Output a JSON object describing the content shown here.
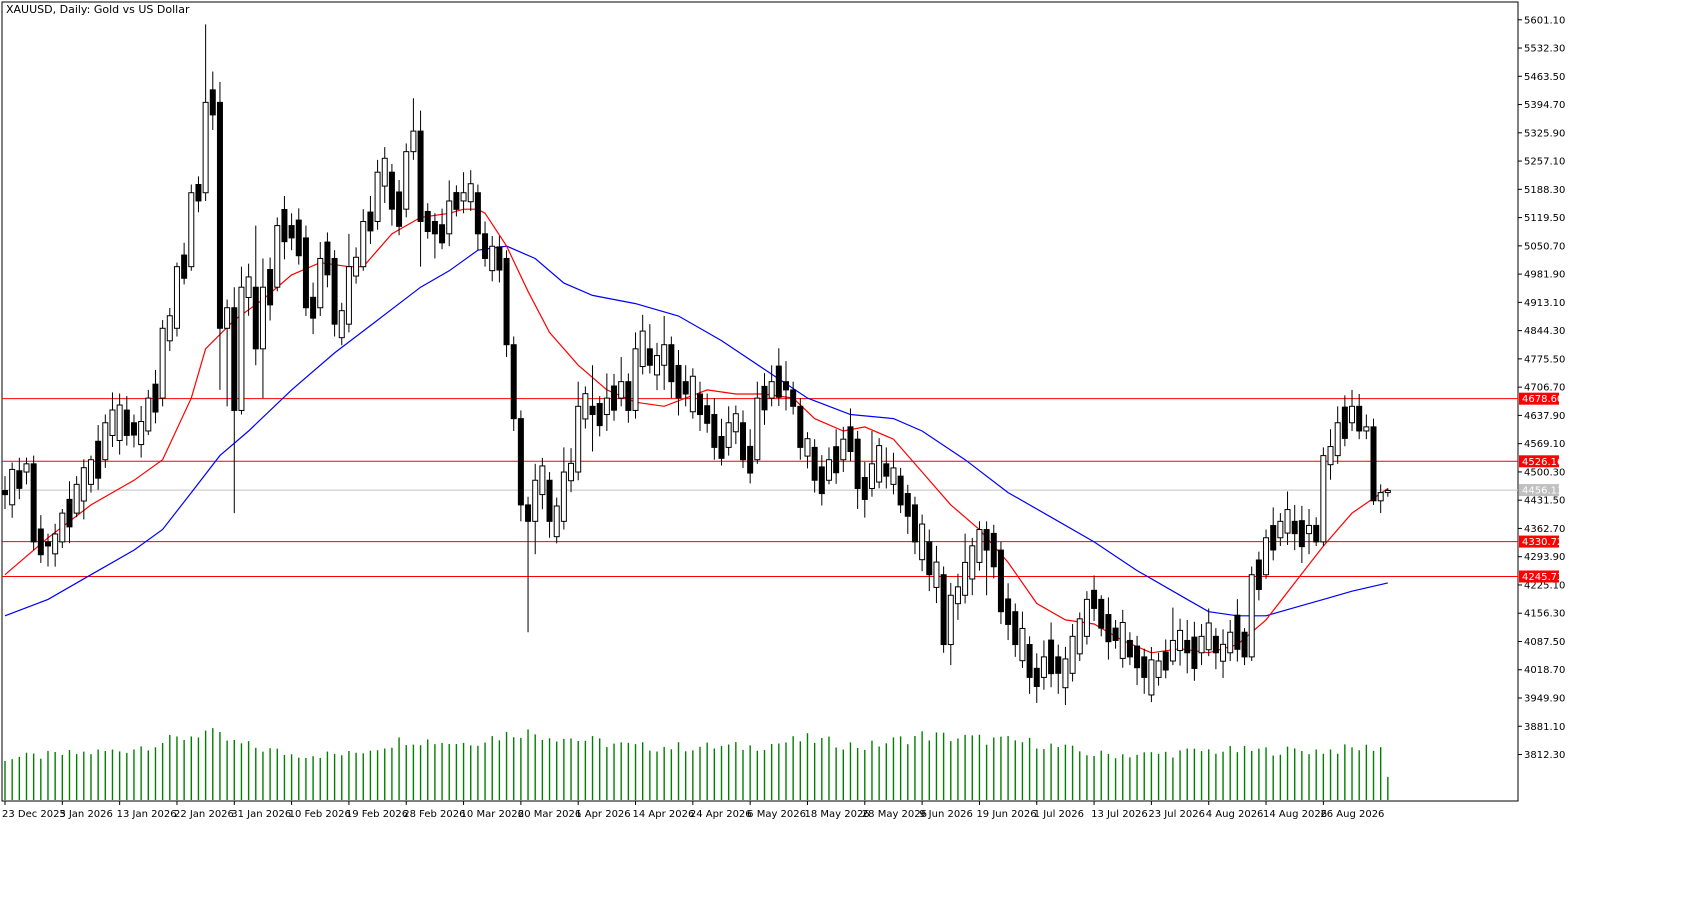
{
  "header": {
    "symbol_title": "XAUUSD, Daily:  Gold vs US Dollar"
  },
  "colors": {
    "background": "#ffffff",
    "frame": "#000000",
    "candle_bull": "#ffffff",
    "candle_bear": "#000000",
    "ma_fast": "#ff0000",
    "ma_slow": "#0000ff",
    "volume": "#008000",
    "hline": "#ff0000",
    "current_price_line": "#c0c0c0",
    "current_price_tag": "#c0c0c0"
  },
  "chart_data": {
    "type": "candlestick",
    "title": "XAUUSD, Daily:  Gold vs US Dollar",
    "xlabel": "",
    "ylabel": "",
    "grid": false,
    "ylim": [
      3760,
      5620
    ],
    "y_ticks": [
      "5601.10",
      "5532.30",
      "5463.50",
      "5394.70",
      "5325.90",
      "5257.10",
      "5188.30",
      "5119.50",
      "5050.70",
      "4981.90",
      "4913.10",
      "4844.30",
      "4775.50",
      "4706.70",
      "4637.90",
      "4569.10",
      "4500.30",
      "4431.50",
      "4362.70",
      "4293.90",
      "4225.10",
      "4156.30",
      "4087.50",
      "4018.70",
      "3949.90",
      "3881.10",
      "3812.30"
    ],
    "x_tick_labels": [
      {
        "index": 0,
        "label": "23 Dec 2025"
      },
      {
        "index": 8,
        "label": "3 Jan 2026"
      },
      {
        "index": 16,
        "label": "13 Jan 2026"
      },
      {
        "index": 24,
        "label": "22 Jan 2026"
      },
      {
        "index": 32,
        "label": "31 Jan 2026"
      },
      {
        "index": 40,
        "label": "10 Feb 2026"
      },
      {
        "index": 48,
        "label": "19 Feb 2026"
      },
      {
        "index": 56,
        "label": "28 Feb 2026"
      },
      {
        "index": 64,
        "label": "10 Mar 2026"
      },
      {
        "index": 72,
        "label": "20 Mar 2026"
      },
      {
        "index": 80,
        "label": "1 Apr 2026"
      },
      {
        "index": 88,
        "label": "14 Apr 2026"
      },
      {
        "index": 96,
        "label": "24 Apr 2026"
      },
      {
        "index": 104,
        "label": "6 May 2026"
      },
      {
        "index": 112,
        "label": "18 May 2026"
      },
      {
        "index": 120,
        "label": "28 May 2026"
      },
      {
        "index": 128,
        "label": "9 Jun 2026"
      },
      {
        "index": 136,
        "label": "19 Jun 2026"
      },
      {
        "index": 144,
        "label": "1 Jul 2026"
      },
      {
        "index": 152,
        "label": "13 Jul 2026"
      },
      {
        "index": 160,
        "label": "23 Jul 2026"
      },
      {
        "index": 168,
        "label": "4 Aug 2026"
      },
      {
        "index": 176,
        "label": "14 Aug 2026"
      },
      {
        "index": 184,
        "label": "26 Aug 2026"
      }
    ],
    "anchors": [
      [
        0,
        4455,
        4445,
        4490,
        4410
      ],
      [
        3,
        4500,
        4520,
        4535,
        4470
      ],
      [
        4,
        4520,
        4330,
        4540,
        4310
      ],
      [
        6,
        4330,
        4320,
        4350,
        4270
      ],
      [
        8,
        4330,
        4400,
        4410,
        4315
      ],
      [
        10,
        4400,
        4470,
        4490,
        4390
      ],
      [
        12,
        4470,
        4530,
        4540,
        4450
      ],
      [
        14,
        4530,
        4620,
        4640,
        4510
      ],
      [
        18,
        4620,
        4590,
        4640,
        4560
      ],
      [
        20,
        4600,
        4680,
        4700,
        4590
      ],
      [
        22,
        4680,
        4850,
        4870,
        4660
      ],
      [
        24,
        4850,
        5000,
        5010,
        4830
      ],
      [
        26,
        5000,
        5180,
        5200,
        4990
      ],
      [
        28,
        5180,
        5400,
        5590,
        5160
      ],
      [
        30,
        5400,
        4850,
        5450,
        4700
      ],
      [
        31,
        4850,
        4900,
        4920,
        4660
      ],
      [
        32,
        4900,
        4650,
        4950,
        4400
      ],
      [
        33,
        4650,
        4950,
        5000,
        4640
      ],
      [
        35,
        4950,
        4800,
        5100,
        4760
      ],
      [
        36,
        4800,
        4950,
        5020,
        4680
      ],
      [
        38,
        4950,
        5100,
        5120,
        4940
      ],
      [
        40,
        5100,
        5070,
        5130,
        5040
      ],
      [
        42,
        5070,
        4900,
        5100,
        4880
      ],
      [
        44,
        4900,
        5020,
        5060,
        4880
      ],
      [
        46,
        5020,
        4860,
        5040,
        4830
      ],
      [
        48,
        4860,
        5000,
        5080,
        4840
      ],
      [
        50,
        5000,
        5110,
        5140,
        4990
      ],
      [
        52,
        5110,
        5230,
        5260,
        5090
      ],
      [
        54,
        5230,
        5140,
        5250,
        5100
      ],
      [
        56,
        5140,
        5280,
        5300,
        5120
      ],
      [
        57,
        5280,
        5330,
        5410,
        5260
      ],
      [
        58,
        5330,
        5110,
        5380,
        5000
      ],
      [
        60,
        5110,
        5080,
        5130,
        5020
      ],
      [
        62,
        5080,
        5160,
        5210,
        5050
      ],
      [
        64,
        5160,
        5180,
        5230,
        5130
      ],
      [
        66,
        5180,
        5080,
        5200,
        5040
      ],
      [
        67,
        5080,
        5020,
        5110,
        5000
      ],
      [
        70,
        5020,
        4810,
        5040,
        4780
      ],
      [
        71,
        4810,
        4630,
        4830,
        4600
      ],
      [
        72,
        4630,
        4420,
        4650,
        4380
      ],
      [
        73,
        4420,
        4380,
        4440,
        4110
      ],
      [
        74,
        4380,
        4480,
        4520,
        4300
      ],
      [
        76,
        4480,
        4380,
        4500,
        4340
      ],
      [
        78,
        4380,
        4500,
        4560,
        4360
      ],
      [
        80,
        4500,
        4660,
        4720,
        4480
      ],
      [
        82,
        4660,
        4640,
        4760,
        4550
      ],
      [
        84,
        4640,
        4680,
        4740,
        4600
      ],
      [
        86,
        4680,
        4720,
        4780,
        4660
      ],
      [
        87,
        4720,
        4650,
        4740,
        4620
      ],
      [
        88,
        4650,
        4800,
        4840,
        4630
      ],
      [
        90,
        4800,
        4760,
        4860,
        4740
      ],
      [
        92,
        4760,
        4810,
        4880,
        4700
      ],
      [
        93,
        4810,
        4720,
        4830,
        4680
      ],
      [
        95,
        4720,
        4690,
        4760,
        4660
      ],
      [
        97,
        4690,
        4640,
        4720,
        4600
      ],
      [
        99,
        4640,
        4560,
        4680,
        4530
      ],
      [
        101,
        4560,
        4620,
        4660,
        4540
      ],
      [
        103,
        4620,
        4530,
        4650,
        4510
      ],
      [
        105,
        4530,
        4680,
        4720,
        4520
      ],
      [
        107,
        4680,
        4720,
        4760,
        4660
      ],
      [
        109,
        4720,
        4700,
        4770,
        4650
      ],
      [
        110,
        4700,
        4660,
        4720,
        4640
      ],
      [
        111,
        4660,
        4560,
        4680,
        4530
      ],
      [
        113,
        4560,
        4480,
        4580,
        4450
      ],
      [
        115,
        4480,
        4530,
        4560,
        4470
      ],
      [
        117,
        4530,
        4580,
        4610,
        4500
      ],
      [
        119,
        4580,
        4460,
        4600,
        4410
      ],
      [
        121,
        4460,
        4520,
        4600,
        4440
      ],
      [
        123,
        4520,
        4490,
        4560,
        4460
      ],
      [
        125,
        4490,
        4420,
        4510,
        4400
      ],
      [
        127,
        4420,
        4330,
        4440,
        4300
      ],
      [
        129,
        4330,
        4250,
        4360,
        4210
      ],
      [
        131,
        4250,
        4080,
        4270,
        4060
      ],
      [
        132,
        4080,
        4200,
        4230,
        4030
      ],
      [
        134,
        4200,
        4280,
        4350,
        4180
      ],
      [
        136,
        4280,
        4360,
        4380,
        4260
      ],
      [
        137,
        4360,
        4310,
        4380,
        4200
      ],
      [
        139,
        4310,
        4160,
        4330,
        4130
      ],
      [
        141,
        4160,
        4080,
        4180,
        4050
      ],
      [
        143,
        4080,
        4000,
        4100,
        3960
      ],
      [
        145,
        4000,
        4050,
        4090,
        3970
      ],
      [
        147,
        4050,
        4010,
        4080,
        3960
      ],
      [
        149,
        4010,
        4100,
        4130,
        3990
      ],
      [
        151,
        4100,
        4190,
        4210,
        4080
      ],
      [
        153,
        4190,
        4120,
        4200,
        4100
      ],
      [
        155,
        4120,
        4090,
        4140,
        4070
      ],
      [
        157,
        4090,
        4050,
        4110,
        4030
      ],
      [
        159,
        4050,
        4000,
        4070,
        3960
      ],
      [
        161,
        4000,
        4040,
        4060,
        3980
      ],
      [
        163,
        4040,
        4090,
        4170,
        4030
      ],
      [
        165,
        4090,
        4060,
        4140,
        4010
      ],
      [
        167,
        4060,
        4100,
        4130,
        4030
      ],
      [
        169,
        4100,
        4060,
        4120,
        4020
      ],
      [
        171,
        4060,
        4110,
        4140,
        4040
      ],
      [
        173,
        4110,
        4050,
        4120,
        4030
      ],
      [
        174,
        4050,
        4250,
        4270,
        4040
      ],
      [
        176,
        4250,
        4340,
        4360,
        4240
      ],
      [
        178,
        4340,
        4380,
        4400,
        4320
      ],
      [
        180,
        4380,
        4350,
        4420,
        4310
      ],
      [
        182,
        4350,
        4370,
        4410,
        4300
      ],
      [
        183,
        4370,
        4330,
        4390,
        4320
      ],
      [
        184,
        4330,
        4540,
        4560,
        4320
      ],
      [
        186,
        4540,
        4620,
        4660,
        4520
      ],
      [
        188,
        4620,
        4660,
        4700,
        4600
      ],
      [
        189,
        4660,
        4600,
        4690,
        4580
      ],
      [
        190,
        4600,
        4610,
        4640,
        4580
      ],
      [
        191,
        4610,
        4430,
        4630,
        4420
      ],
      [
        192,
        4430,
        4450,
        4470,
        4400
      ],
      [
        193,
        4450,
        4455,
        4460,
        4440
      ]
    ],
    "ma_fast_points": [
      [
        0,
        4250
      ],
      [
        6,
        4340
      ],
      [
        12,
        4420
      ],
      [
        18,
        4480
      ],
      [
        22,
        4530
      ],
      [
        26,
        4680
      ],
      [
        28,
        4800
      ],
      [
        32,
        4870
      ],
      [
        36,
        4920
      ],
      [
        40,
        4980
      ],
      [
        44,
        5010
      ],
      [
        48,
        5000
      ],
      [
        50,
        5000
      ],
      [
        52,
        5040
      ],
      [
        54,
        5080
      ],
      [
        58,
        5120
      ],
      [
        62,
        5130
      ],
      [
        64,
        5140
      ],
      [
        66,
        5140
      ],
      [
        67,
        5130
      ],
      [
        70,
        5050
      ],
      [
        73,
        4940
      ],
      [
        76,
        4840
      ],
      [
        80,
        4760
      ],
      [
        84,
        4700
      ],
      [
        88,
        4670
      ],
      [
        92,
        4660
      ],
      [
        95,
        4680
      ],
      [
        98,
        4700
      ],
      [
        102,
        4690
      ],
      [
        106,
        4690
      ],
      [
        110,
        4680
      ],
      [
        113,
        4630
      ],
      [
        117,
        4600
      ],
      [
        120,
        4610
      ],
      [
        124,
        4580
      ],
      [
        128,
        4500
      ],
      [
        132,
        4420
      ],
      [
        136,
        4360
      ],
      [
        140,
        4280
      ],
      [
        144,
        4180
      ],
      [
        148,
        4140
      ],
      [
        152,
        4130
      ],
      [
        156,
        4090
      ],
      [
        160,
        4060
      ],
      [
        164,
        4070
      ],
      [
        168,
        4060
      ],
      [
        172,
        4080
      ],
      [
        176,
        4140
      ],
      [
        180,
        4230
      ],
      [
        184,
        4320
      ],
      [
        188,
        4400
      ],
      [
        193,
        4460
      ]
    ],
    "ma_slow_points": [
      [
        0,
        4150
      ],
      [
        6,
        4190
      ],
      [
        12,
        4250
      ],
      [
        18,
        4310
      ],
      [
        22,
        4360
      ],
      [
        26,
        4450
      ],
      [
        30,
        4540
      ],
      [
        34,
        4600
      ],
      [
        40,
        4700
      ],
      [
        46,
        4790
      ],
      [
        52,
        4870
      ],
      [
        58,
        4950
      ],
      [
        62,
        4990
      ],
      [
        66,
        5040
      ],
      [
        70,
        5050
      ],
      [
        74,
        5020
      ],
      [
        78,
        4960
      ],
      [
        82,
        4930
      ],
      [
        88,
        4910
      ],
      [
        94,
        4880
      ],
      [
        100,
        4820
      ],
      [
        106,
        4750
      ],
      [
        112,
        4680
      ],
      [
        118,
        4640
      ],
      [
        124,
        4630
      ],
      [
        128,
        4600
      ],
      [
        134,
        4530
      ],
      [
        140,
        4450
      ],
      [
        146,
        4390
      ],
      [
        152,
        4330
      ],
      [
        158,
        4260
      ],
      [
        164,
        4200
      ],
      [
        168,
        4160
      ],
      [
        172,
        4150
      ],
      [
        176,
        4150
      ],
      [
        180,
        4170
      ],
      [
        184,
        4190
      ],
      [
        188,
        4210
      ],
      [
        193,
        4230
      ]
    ],
    "volume_levels": [
      {
        "index": 0,
        "value": 0.55
      },
      {
        "index": 8,
        "value": 0.6
      },
      {
        "index": 16,
        "value": 0.65
      },
      {
        "index": 24,
        "value": 0.8
      },
      {
        "index": 28,
        "value": 0.9
      },
      {
        "index": 32,
        "value": 0.75
      },
      {
        "index": 40,
        "value": 0.6
      },
      {
        "index": 48,
        "value": 0.6
      },
      {
        "index": 56,
        "value": 0.8
      },
      {
        "index": 64,
        "value": 0.75
      },
      {
        "index": 72,
        "value": 0.9
      },
      {
        "index": 80,
        "value": 0.8
      },
      {
        "index": 88,
        "value": 0.7
      },
      {
        "index": 96,
        "value": 0.7
      },
      {
        "index": 104,
        "value": 0.7
      },
      {
        "index": 112,
        "value": 0.8
      },
      {
        "index": 120,
        "value": 0.7
      },
      {
        "index": 128,
        "value": 0.85
      },
      {
        "index": 136,
        "value": 0.8
      },
      {
        "index": 144,
        "value": 0.75
      },
      {
        "index": 152,
        "value": 0.6
      },
      {
        "index": 160,
        "value": 0.6
      },
      {
        "index": 168,
        "value": 0.65
      },
      {
        "index": 176,
        "value": 0.65
      },
      {
        "index": 184,
        "value": 0.65
      },
      {
        "index": 192,
        "value": 0.7
      },
      {
        "index": 193,
        "value": 0.3
      }
    ],
    "horizontal_lines": [
      {
        "price": 4678.6,
        "label": "4678.60",
        "color": "#ff0000"
      },
      {
        "price": 4526.16,
        "label": "4526.16",
        "color": "#ff0000"
      },
      {
        "price": 4330.72,
        "label": "4330.72",
        "color": "#ff0000"
      },
      {
        "price": 4245.73,
        "label": "4245.73",
        "color": "#ff0000"
      }
    ],
    "current_price": {
      "price": 4456.13,
      "label": "4456.13"
    }
  }
}
